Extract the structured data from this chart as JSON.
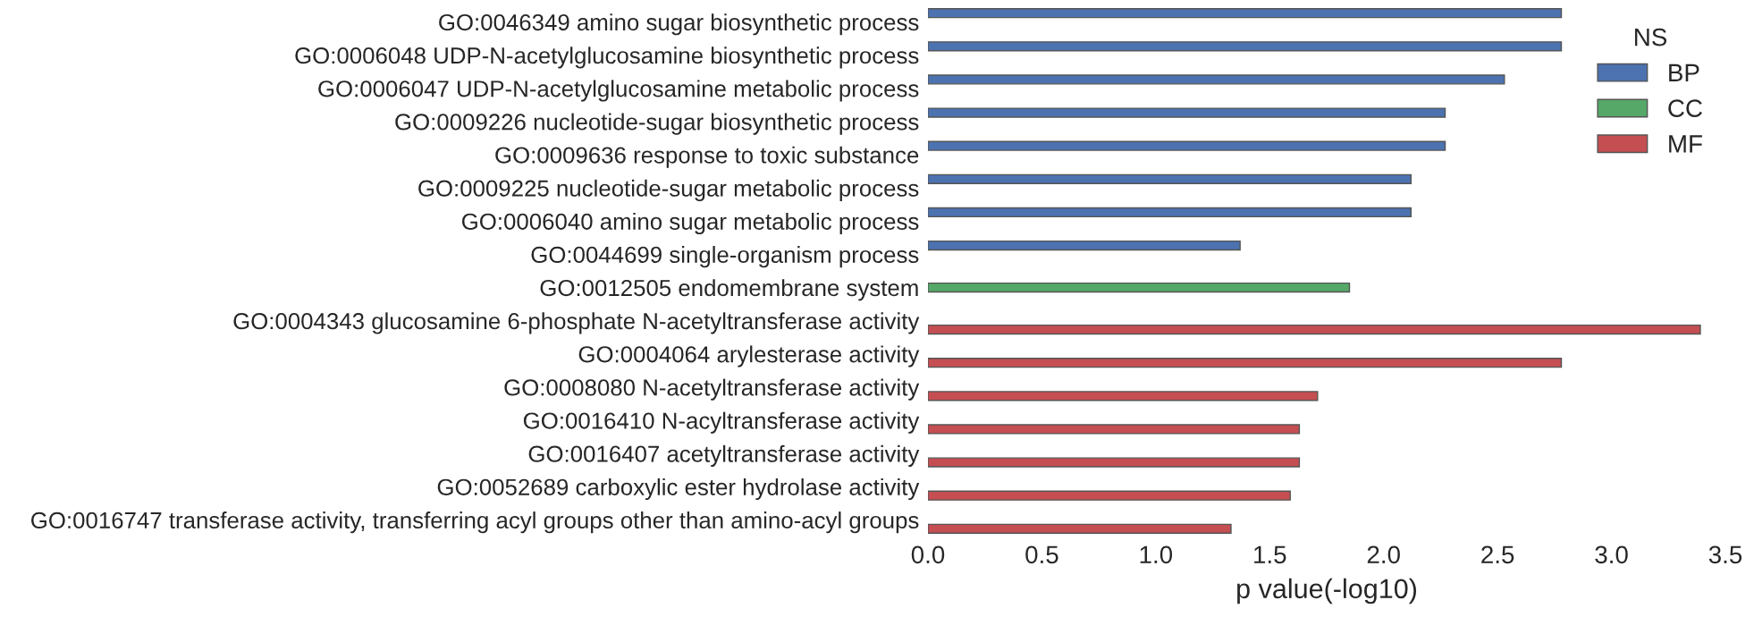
{
  "chart_data": {
    "type": "bar",
    "orientation": "horizontal",
    "xlabel": "p value(-log10)",
    "legend_title": "NS",
    "legend": "top right",
    "grid": false,
    "categories": [
      "GO:0046349 amino sugar biosynthetic process",
      "GO:0006048 UDP-N-acetylglucosamine biosynthetic process",
      "GO:0006047 UDP-N-acetylglucosamine metabolic process",
      "GO:0009226 nucleotide-sugar biosynthetic process",
      "GO:0009636 response to toxic substance",
      "GO:0009225 nucleotide-sugar metabolic process",
      "GO:0006040 amino sugar metabolic process",
      "GO:0044699 single-organism process",
      "GO:0012505 endomembrane system",
      "GO:0004343 glucosamine 6-phosphate N-acetyltransferase activity",
      "GO:0004064 arylesterase activity",
      "GO:0008080 N-acetyltransferase activity",
      "GO:0016410 N-acyltransferase activity",
      "GO:0016407 acetyltransferase activity",
      "GO:0052689 carboxylic ester hydrolase activity",
      "GO:0016747 transferase activity, transferring acyl groups other than amino-acyl groups"
    ],
    "series": [
      {
        "name": "BP",
        "color": "#4c72b0",
        "values": [
          2.78,
          2.78,
          2.53,
          2.27,
          2.27,
          2.12,
          2.12,
          1.37,
          null,
          null,
          null,
          null,
          null,
          null,
          null,
          null
        ]
      },
      {
        "name": "CC",
        "color": "#55a868",
        "values": [
          null,
          null,
          null,
          null,
          null,
          null,
          null,
          null,
          1.85,
          null,
          null,
          null,
          null,
          null,
          null,
          null
        ]
      },
      {
        "name": "MF",
        "color": "#c44e52",
        "values": [
          null,
          null,
          null,
          null,
          null,
          null,
          null,
          null,
          null,
          3.39,
          2.78,
          1.71,
          1.63,
          1.63,
          1.59,
          1.33
        ]
      }
    ],
    "xlim": [
      0,
      3.5
    ],
    "xticks": [
      {
        "value": 0,
        "label": "0.0"
      },
      0.5,
      {
        "value": 1,
        "label": "1.0"
      },
      1.5,
      {
        "value": 2,
        "label": "2.0"
      },
      2.5,
      {
        "value": 3,
        "label": "3.0"
      },
      3.5
    ]
  }
}
